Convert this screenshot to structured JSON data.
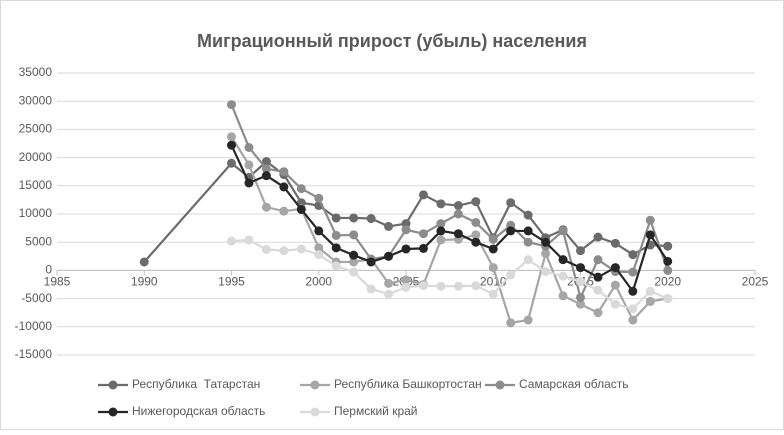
{
  "chart_data": {
    "type": "line",
    "title": "Миграционный прирост (убыль) населения",
    "x": [
      1990,
      1995,
      1996,
      1997,
      1998,
      1999,
      2000,
      2001,
      2002,
      2003,
      2004,
      2005,
      2006,
      2007,
      2008,
      2009,
      2010,
      2011,
      2012,
      2013,
      2014,
      2015,
      2016,
      2017,
      2018,
      2019,
      2020
    ],
    "series": [
      {
        "name": "Республика  Татарстан",
        "color": "#6b6b6b",
        "values": [
          1500,
          19000,
          16500,
          19300,
          17000,
          12000,
          11500,
          9300,
          9300,
          9200,
          7800,
          8300,
          13400,
          11800,
          11500,
          12200,
          5800,
          12000,
          9800,
          5800,
          7200,
          3500,
          5900,
          4800,
          2800,
          4500,
          4300
        ]
      },
      {
        "name": "Республика Башкортостан",
        "color": "#a6a6a6",
        "values": [
          null,
          23700,
          18700,
          11200,
          10500,
          10900,
          4000,
          1500,
          1500,
          2000,
          -2300,
          -1700,
          -2500,
          5400,
          5500,
          6300,
          500,
          -9300,
          -8800,
          3000,
          -4500,
          -6000,
          -7500,
          -2600,
          -8800,
          -5500,
          -5000
        ]
      },
      {
        "name": "Самарская область",
        "color": "#8c8c8c",
        "values": [
          null,
          29400,
          21800,
          18000,
          17500,
          14500,
          12800,
          6200,
          6300,
          2000,
          2500,
          7200,
          6500,
          8300,
          10000,
          8500,
          5500,
          8000,
          5000,
          4300,
          7000,
          -4800,
          1900,
          -200,
          -300,
          8900,
          0
        ]
      },
      {
        "name": "Нижегородская область",
        "color": "#262626",
        "values": [
          null,
          22200,
          15500,
          16800,
          14800,
          10800,
          7000,
          4000,
          2700,
          1500,
          2500,
          3800,
          3900,
          7000,
          6500,
          5000,
          3800,
          7000,
          7000,
          5000,
          1900,
          500,
          -1200,
          500,
          -3700,
          6300,
          1600
        ]
      },
      {
        "name": "Пермский край",
        "color": "#d9d9d9",
        "values": [
          null,
          5200,
          5400,
          3700,
          3500,
          3800,
          2800,
          800,
          -300,
          -3300,
          -4200,
          -3000,
          -2700,
          -2800,
          -2800,
          -2700,
          -4200,
          -800,
          1900,
          -200,
          -1000,
          -2000,
          -3500,
          -6000,
          -6800,
          -3700,
          -5000
        ]
      }
    ],
    "xlim": [
      1985,
      2025
    ],
    "xticks": [
      1985,
      1990,
      1995,
      2000,
      2005,
      2010,
      2015,
      2020,
      2025
    ],
    "ylim": [
      -15000,
      35000
    ],
    "yticks": [
      -15000,
      -10000,
      -5000,
      0,
      5000,
      10000,
      15000,
      20000,
      25000,
      30000,
      35000
    ],
    "grid": true,
    "legend": "bottom"
  }
}
